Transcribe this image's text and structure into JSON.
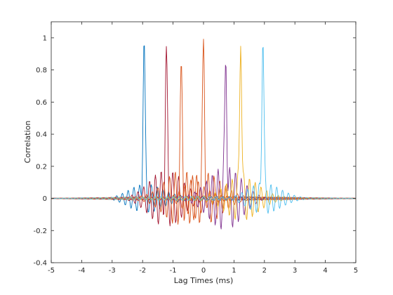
{
  "chart_data": {
    "type": "line",
    "xlabel": "Lag Times (ms)",
    "ylabel": "Correlation",
    "xlim": [
      -5,
      5
    ],
    "ylim": [
      -0.4,
      1.1
    ],
    "xticks": [
      -5,
      -4,
      -3,
      -2,
      -1,
      0,
      1,
      2,
      3,
      4,
      5
    ],
    "xtick_labels": [
      "-5",
      "-4",
      "-3",
      "-2",
      "-1",
      "0",
      "1",
      "2",
      "3",
      "4",
      "5"
    ],
    "yticks": [
      -0.4,
      -0.2,
      0,
      0.2,
      0.4,
      0.6,
      0.8,
      1
    ],
    "ytick_labels": [
      "-0.4",
      "-0.2",
      "0",
      "0.2",
      "0.4",
      "0.6",
      "0.8",
      "1"
    ],
    "grid": false,
    "box": true,
    "series": [
      {
        "color": "#0072BD",
        "peak_x": -1.95,
        "peak_y": 0.98,
        "min_y": -0.09
      },
      {
        "color": "#A2142F",
        "peak_x": -1.22,
        "peak_y": 0.94,
        "min_y": -0.17
      },
      {
        "color": "#D95319",
        "peak_x": -0.73,
        "peak_y": 0.86,
        "min_y": -0.19
      },
      {
        "color": "#D95319",
        "peak_x": 0.0,
        "peak_y": 1.0,
        "min_y": -0.16
      },
      {
        "color": "#7E2F8E",
        "peak_x": 0.73,
        "peak_y": 0.86,
        "min_y": -0.19
      },
      {
        "color": "#EDB120",
        "peak_x": 1.22,
        "peak_y": 0.94,
        "min_y": -0.15
      },
      {
        "color": "#4DBEEE",
        "peak_x": 1.95,
        "peak_y": 0.98,
        "min_y": -0.09
      }
    ]
  }
}
